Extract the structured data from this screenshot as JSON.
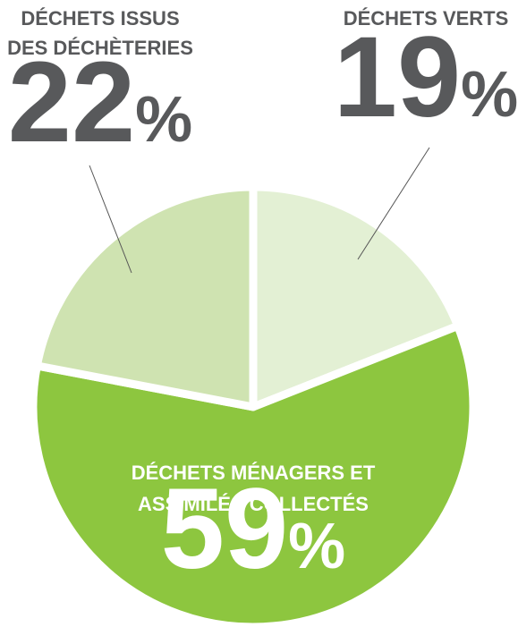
{
  "chart_data": {
    "type": "pie",
    "categories": [
      [
        "DÉCHETS VERTS"
      ],
      [
        "DÉCHETS MÉNAGERS ET",
        "ASSIMILÉS COLLECTÉS"
      ],
      [
        "DÉCHETS ISSUS",
        "DES DÉCHÈTERIES"
      ]
    ],
    "values": [
      19,
      59,
      22
    ],
    "value_labels": [
      "19%",
      "59%",
      "22%"
    ],
    "colors": [
      "#e3f0d4",
      "#8dc63f",
      "#cfe3b1"
    ]
  }
}
